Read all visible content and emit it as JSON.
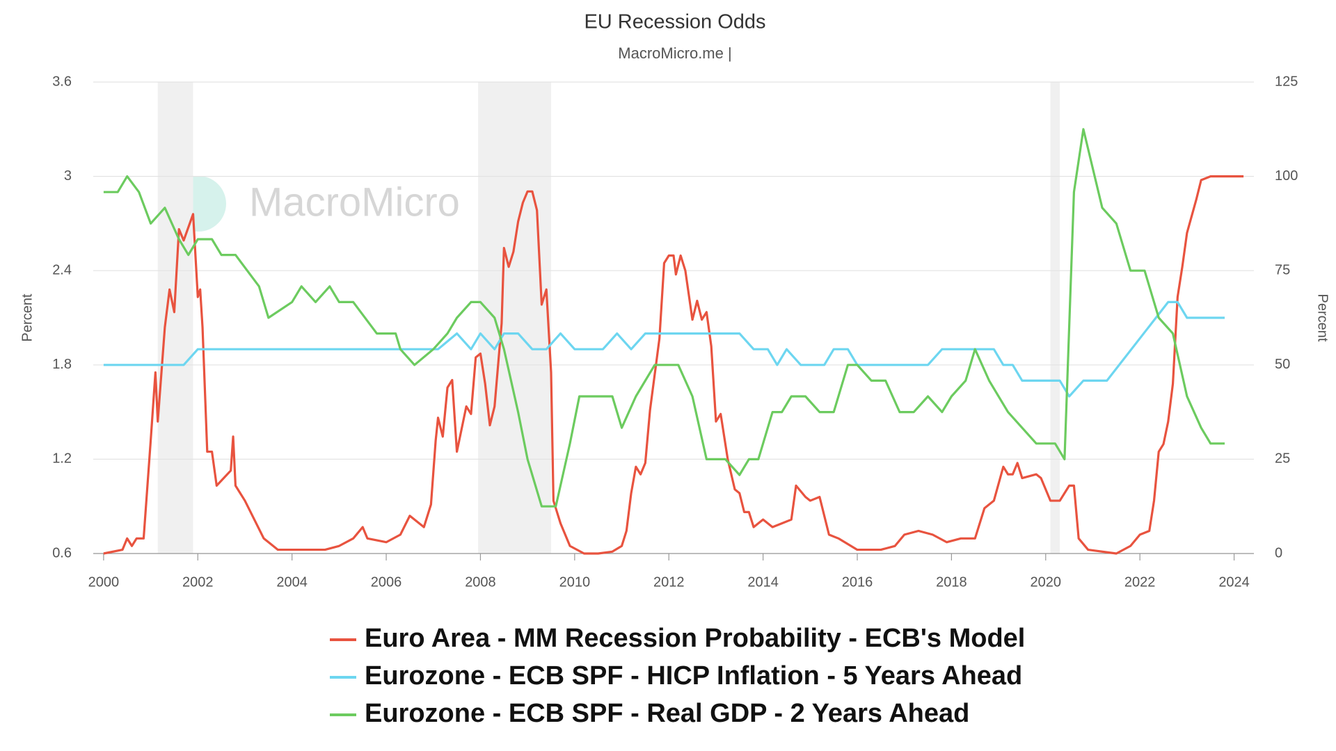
{
  "chart_data": {
    "type": "line",
    "title": "EU Recession Odds",
    "subtitle": "MacroMicro.me |",
    "watermark": "MacroMicro",
    "ylabel": "Percent",
    "y2label": "Percent",
    "xlim": [
      1999.78,
      2024.42
    ],
    "xticks": [
      2000,
      2002,
      2004,
      2006,
      2008,
      2010,
      2012,
      2014,
      2016,
      2018,
      2020,
      2022,
      2024
    ],
    "ylim": [
      0.6,
      3.6
    ],
    "yticks": [
      0.6,
      1.2,
      1.8,
      2.4,
      3,
      3.6
    ],
    "y2lim": [
      0,
      125
    ],
    "y2ticks": [
      0,
      25,
      50,
      75,
      100,
      125
    ],
    "grid": true,
    "recessions": [
      {
        "start": 2001.15,
        "end": 2001.9
      },
      {
        "start": 2007.95,
        "end": 2009.5
      },
      {
        "start": 2020.1,
        "end": 2020.3
      }
    ],
    "series": [
      {
        "name": "Euro Area - MM Recession Probability - ECB's Model",
        "color": "#e8533f",
        "axis": "y2",
        "x": [
          2000,
          2000.4,
          2000.5,
          2000.6,
          2000.7,
          2000.85,
          2001,
          2001.1,
          2001.15,
          2001.3,
          2001.4,
          2001.5,
          2001.6,
          2001.7,
          2001.9,
          2002.0,
          2002.05,
          2002.1,
          2002.2,
          2002.3,
          2002.4,
          2002.7,
          2002.75,
          2002.8,
          2003,
          2003.2,
          2003.4,
          2003.6,
          2003.7,
          2004,
          2004.5,
          2004.7,
          2005,
          2005.3,
          2005.5,
          2005.6,
          2006,
          2006.3,
          2006.5,
          2006.8,
          2006.95,
          2007.05,
          2007.1,
          2007.2,
          2007.3,
          2007.4,
          2007.5,
          2007.7,
          2007.8,
          2007.9,
          2008.0,
          2008.1,
          2008.2,
          2008.3,
          2008.45,
          2008.5,
          2008.6,
          2008.7,
          2008.8,
          2008.9,
          2009.0,
          2009.1,
          2009.2,
          2009.3,
          2009.4,
          2009.5,
          2009.55,
          2009.7,
          2009.9,
          2010.2,
          2010.5,
          2010.8,
          2011.0,
          2011.1,
          2011.2,
          2011.3,
          2011.4,
          2011.5,
          2011.6,
          2011.8,
          2011.9,
          2012.0,
          2012.1,
          2012.15,
          2012.25,
          2012.35,
          2012.5,
          2012.6,
          2012.7,
          2012.8,
          2012.9,
          2013.0,
          2013.1,
          2013.25,
          2013.4,
          2013.5,
          2013.6,
          2013.7,
          2013.8,
          2014,
          2014.2,
          2014.4,
          2014.6,
          2014.7,
          2014.9,
          2015,
          2015.2,
          2015.4,
          2015.6,
          2016,
          2016.5,
          2016.8,
          2017,
          2017.3,
          2017.6,
          2017.9,
          2018.2,
          2018.5,
          2018.7,
          2018.9,
          2019.1,
          2019.2,
          2019.3,
          2019.4,
          2019.5,
          2019.8,
          2019.9,
          2020.1,
          2020.3,
          2020.5,
          2020.6,
          2020.7,
          2020.9,
          2021.5,
          2021.8,
          2022.0,
          2022.2,
          2022.3,
          2022.4,
          2022.5,
          2022.6,
          2022.7,
          2022.8,
          2022.9,
          2023.0,
          2023.2,
          2023.3,
          2023.5,
          2024.2
        ],
        "values": [
          0,
          1,
          4,
          2,
          4,
          4,
          30,
          48,
          35,
          60,
          70,
          64,
          86,
          83,
          90,
          68,
          70,
          60,
          27,
          27,
          18,
          22,
          31,
          18,
          14,
          9,
          4,
          2,
          1,
          1,
          1,
          1,
          2,
          4,
          7,
          4,
          3,
          5,
          10,
          7,
          13,
          30,
          36,
          31,
          44,
          46,
          27,
          39,
          37,
          52,
          53,
          45,
          34,
          39,
          61,
          81,
          76,
          80,
          88,
          93,
          96,
          96,
          91,
          66,
          70,
          48,
          14,
          8,
          2,
          0,
          0,
          0.5,
          2,
          6,
          16,
          23,
          21,
          24,
          38,
          57,
          77,
          79,
          79,
          74,
          79,
          75,
          62,
          67,
          62,
          64,
          55,
          35,
          37,
          25,
          17,
          16,
          11,
          11,
          7,
          9,
          7,
          8,
          9,
          18,
          15,
          14,
          15,
          5,
          4,
          1,
          1,
          2,
          5,
          6,
          5,
          3,
          4,
          4,
          12,
          14,
          23,
          21,
          21,
          24,
          20,
          21,
          20,
          14,
          14,
          18,
          18,
          4,
          1,
          0,
          2,
          5,
          6,
          14,
          27,
          29,
          35,
          45,
          68,
          76,
          85,
          94,
          99,
          100,
          100
        ]
      },
      {
        "name": "Eurozone - ECB SPF - HICP Inflation - 5 Years Ahead",
        "color": "#6dd6f0",
        "axis": "y",
        "x": [
          2000,
          2001.7,
          2002.0,
          2007.1,
          2007.5,
          2007.8,
          2008.0,
          2008.3,
          2008.5,
          2008.8,
          2009.1,
          2009.4,
          2009.7,
          2010,
          2010.6,
          2010.9,
          2011.2,
          2011.5,
          2013.5,
          2013.8,
          2014.1,
          2014.3,
          2014.5,
          2014.8,
          2015.3,
          2015.5,
          2015.8,
          2016,
          2017.5,
          2017.8,
          2018.9,
          2019.1,
          2019.3,
          2019.5,
          2020.3,
          2020.5,
          2020.8,
          2021.3,
          2022.6,
          2022.8,
          2023.0,
          2023.8
        ],
        "values": [
          1.8,
          1.8,
          1.9,
          1.9,
          2.0,
          1.9,
          2.0,
          1.9,
          2.0,
          2.0,
          1.9,
          1.9,
          2.0,
          1.9,
          1.9,
          2.0,
          1.9,
          2.0,
          2.0,
          1.9,
          1.9,
          1.8,
          1.9,
          1.8,
          1.8,
          1.9,
          1.9,
          1.8,
          1.8,
          1.9,
          1.9,
          1.8,
          1.8,
          1.7,
          1.7,
          1.6,
          1.7,
          1.7,
          2.2,
          2.2,
          2.1,
          2.1
        ]
      },
      {
        "name": "Eurozone - ECB SPF - Real GDP - 2 Years Ahead",
        "color": "#6ccb5f",
        "axis": "y",
        "x": [
          2000,
          2000.3,
          2000.5,
          2000.75,
          2001.0,
          2001.3,
          2001.6,
          2001.8,
          2002.0,
          2002.3,
          2002.5,
          2002.8,
          2003.3,
          2003.5,
          2004,
          2004.2,
          2004.5,
          2004.8,
          2005,
          2005.3,
          2005.8,
          2006.2,
          2006.3,
          2006.6,
          2007,
          2007.3,
          2007.5,
          2007.8,
          2008.0,
          2008.3,
          2008.5,
          2008.8,
          2009.0,
          2009.3,
          2009.6,
          2009.9,
          2010.1,
          2010.5,
          2010.8,
          2011.0,
          2011.3,
          2011.7,
          2012.2,
          2012.5,
          2012.8,
          2013.2,
          2013.5,
          2013.7,
          2013.9,
          2014.2,
          2014.4,
          2014.6,
          2014.9,
          2015.2,
          2015.5,
          2015.8,
          2016,
          2016.3,
          2016.6,
          2016.9,
          2017.2,
          2017.5,
          2017.8,
          2018,
          2018.3,
          2018.5,
          2018.8,
          2019.2,
          2019.5,
          2019.8,
          2020.2,
          2020.4,
          2020.6,
          2020.8,
          2021.2,
          2021.5,
          2021.8,
          2022.1,
          2022.4,
          2022.7,
          2023.0,
          2023.3,
          2023.5,
          2023.8
        ],
        "values": [
          2.9,
          2.9,
          3.0,
          2.9,
          2.7,
          2.8,
          2.6,
          2.5,
          2.6,
          2.6,
          2.5,
          2.5,
          2.3,
          2.1,
          2.2,
          2.3,
          2.2,
          2.3,
          2.2,
          2.2,
          2.0,
          2.0,
          1.9,
          1.8,
          1.9,
          2.0,
          2.1,
          2.2,
          2.2,
          2.1,
          1.9,
          1.5,
          1.2,
          0.9,
          0.9,
          1.3,
          1.6,
          1.6,
          1.6,
          1.4,
          1.6,
          1.8,
          1.8,
          1.6,
          1.2,
          1.2,
          1.1,
          1.2,
          1.2,
          1.5,
          1.5,
          1.6,
          1.6,
          1.5,
          1.5,
          1.8,
          1.8,
          1.7,
          1.7,
          1.5,
          1.5,
          1.6,
          1.5,
          1.6,
          1.7,
          1.9,
          1.7,
          1.5,
          1.4,
          1.3,
          1.3,
          1.2,
          2.9,
          3.3,
          2.8,
          2.7,
          2.4,
          2.4,
          2.1,
          2.0,
          1.6,
          1.4,
          1.3,
          1.3
        ]
      }
    ]
  }
}
